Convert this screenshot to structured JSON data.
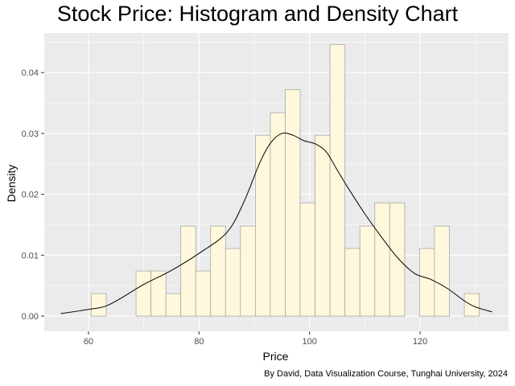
{
  "chart_data": {
    "type": "histogram",
    "title": "Stock Price: Histogram and Density Chart",
    "xlabel": "Price",
    "ylabel": "Density",
    "caption": "By David, Data Visualization Course, Tunghai University, 2024",
    "xlim": [
      52,
      136
    ],
    "ylim": [
      -0.0025,
      0.0465
    ],
    "x_ticks": [
      60,
      80,
      100,
      120
    ],
    "x_tick_labels": [
      "60",
      "80",
      "100",
      "120"
    ],
    "y_ticks": [
      0.0,
      0.01,
      0.02,
      0.03,
      0.04
    ],
    "y_tick_labels": [
      "0.00",
      "0.01",
      "0.02",
      "0.03",
      "0.04"
    ],
    "bins": [
      {
        "start": 60.5,
        "end": 63.2,
        "density": 0.0037
      },
      {
        "start": 63.2,
        "end": 65.9,
        "density": 0.0
      },
      {
        "start": 65.9,
        "end": 68.6,
        "density": 0.0
      },
      {
        "start": 68.6,
        "end": 71.3,
        "density": 0.0074
      },
      {
        "start": 71.3,
        "end": 74.0,
        "density": 0.0074
      },
      {
        "start": 74.0,
        "end": 76.7,
        "density": 0.0037
      },
      {
        "start": 76.7,
        "end": 79.4,
        "density": 0.0148
      },
      {
        "start": 79.4,
        "end": 82.1,
        "density": 0.0074
      },
      {
        "start": 82.1,
        "end": 84.8,
        "density": 0.0148
      },
      {
        "start": 84.8,
        "end": 87.5,
        "density": 0.0111
      },
      {
        "start": 87.5,
        "end": 90.2,
        "density": 0.0148
      },
      {
        "start": 90.2,
        "end": 92.9,
        "density": 0.0297
      },
      {
        "start": 92.9,
        "end": 95.6,
        "density": 0.0334
      },
      {
        "start": 95.6,
        "end": 98.3,
        "density": 0.0372
      },
      {
        "start": 98.3,
        "end": 101.0,
        "density": 0.0186
      },
      {
        "start": 101.0,
        "end": 103.7,
        "density": 0.0297
      },
      {
        "start": 103.7,
        "end": 106.4,
        "density": 0.0446
      },
      {
        "start": 106.4,
        "end": 109.1,
        "density": 0.0111
      },
      {
        "start": 109.1,
        "end": 111.8,
        "density": 0.0148
      },
      {
        "start": 111.8,
        "end": 114.5,
        "density": 0.0186
      },
      {
        "start": 114.5,
        "end": 117.2,
        "density": 0.0186
      },
      {
        "start": 117.2,
        "end": 119.9,
        "density": 0.0
      },
      {
        "start": 119.9,
        "end": 122.6,
        "density": 0.0111
      },
      {
        "start": 122.6,
        "end": 125.3,
        "density": 0.0148
      },
      {
        "start": 125.3,
        "end": 128.0,
        "density": 0.0
      },
      {
        "start": 128.0,
        "end": 130.7,
        "density": 0.0037
      }
    ],
    "density_curve": {
      "x": [
        55,
        60,
        63,
        66,
        70,
        75,
        80,
        85,
        88,
        91,
        93,
        95,
        97,
        99,
        101,
        103,
        105,
        107,
        110,
        113,
        116,
        119,
        122,
        125,
        128,
        130,
        133
      ],
      "y": [
        0.0004,
        0.0011,
        0.0016,
        0.003,
        0.0052,
        0.0075,
        0.0103,
        0.0137,
        0.0185,
        0.0252,
        0.0285,
        0.03,
        0.0297,
        0.0288,
        0.0283,
        0.027,
        0.024,
        0.021,
        0.0168,
        0.013,
        0.0095,
        0.007,
        0.006,
        0.0045,
        0.0025,
        0.0015,
        0.0007
      ]
    },
    "colors": {
      "panel_background": "#ebebeb",
      "grid": "#ffffff",
      "bar_fill": "#fff8dc",
      "bar_outline": "#a8a8a8",
      "density_line": "#000000"
    },
    "grid": true,
    "legend": "none"
  }
}
